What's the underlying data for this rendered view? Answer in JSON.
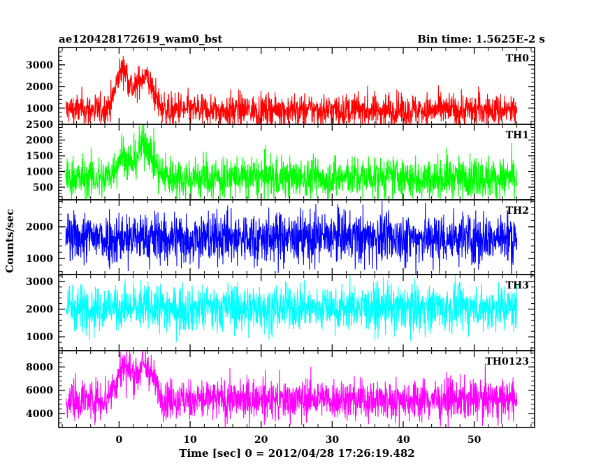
{
  "chart_data": {
    "type": "line",
    "title_left": "ae120428172619_wam0_bst",
    "title_right": "Bin time: 1.5625E-2 s",
    "xlabel": "Time [sec] 0 = 2012/04/28 17:26:19.482",
    "ylabel": "Counts/sec",
    "xlim": [
      -8.5,
      58.5
    ],
    "x_ticks": [
      0,
      10,
      20,
      30,
      40,
      50
    ],
    "x_tick_labels": [
      "0",
      "10",
      "20",
      "30",
      "40",
      "50"
    ],
    "x_data_range": [
      -7.5,
      56
    ],
    "panels": [
      {
        "name": "TH0",
        "color": "#ff0000",
        "ylim": [
          250,
          3800
        ],
        "y_ticks": [
          1000,
          2000,
          3000
        ],
        "y_tick_labels": [
          "1000",
          "2000",
          "3000"
        ],
        "baseline_mean": 900,
        "baseline_spread": 480,
        "bursts": [
          {
            "t": 0.5,
            "w": 0.9,
            "amp": 1900
          },
          {
            "t": 3.6,
            "w": 1.1,
            "amp": 1600
          }
        ]
      },
      {
        "name": "TH1",
        "color": "#00ff00",
        "ylim": [
          100,
          2500
        ],
        "y_ticks": [
          500,
          1000,
          1500,
          2000,
          2500
        ],
        "y_tick_labels": [
          "500",
          "1000",
          "1500",
          "2000",
          "2500"
        ],
        "baseline_mean": 800,
        "baseline_spread": 420,
        "bursts": [
          {
            "t": 0.4,
            "w": 0.8,
            "amp": 700
          },
          {
            "t": 3.6,
            "w": 1.1,
            "amp": 1100
          }
        ]
      },
      {
        "name": "TH2",
        "color": "#0000ff",
        "ylim": [
          500,
          2850
        ],
        "y_ticks": [
          1000,
          2000
        ],
        "y_tick_labels": [
          "1000",
          "2000"
        ],
        "baseline_mean": 1650,
        "baseline_spread": 520,
        "bursts": []
      },
      {
        "name": "TH3",
        "color": "#00ffff",
        "ylim": [
          500,
          3250
        ],
        "y_ticks": [
          1000,
          2000,
          3000
        ],
        "y_tick_labels": [
          "1000",
          "2000",
          "3000"
        ],
        "baseline_mean": 2050,
        "baseline_spread": 520,
        "bursts": []
      },
      {
        "name": "TH0123",
        "color": "#ff00ff",
        "ylim": [
          2800,
          9400
        ],
        "y_ticks": [
          4000,
          6000,
          8000
        ],
        "y_tick_labels": [
          "4000",
          "6000",
          "8000"
        ],
        "baseline_mean": 5200,
        "baseline_spread": 1100,
        "bursts": [
          {
            "t": 0.6,
            "w": 1.0,
            "amp": 2700
          },
          {
            "t": 3.6,
            "w": 1.2,
            "amp": 2900
          }
        ]
      }
    ]
  }
}
